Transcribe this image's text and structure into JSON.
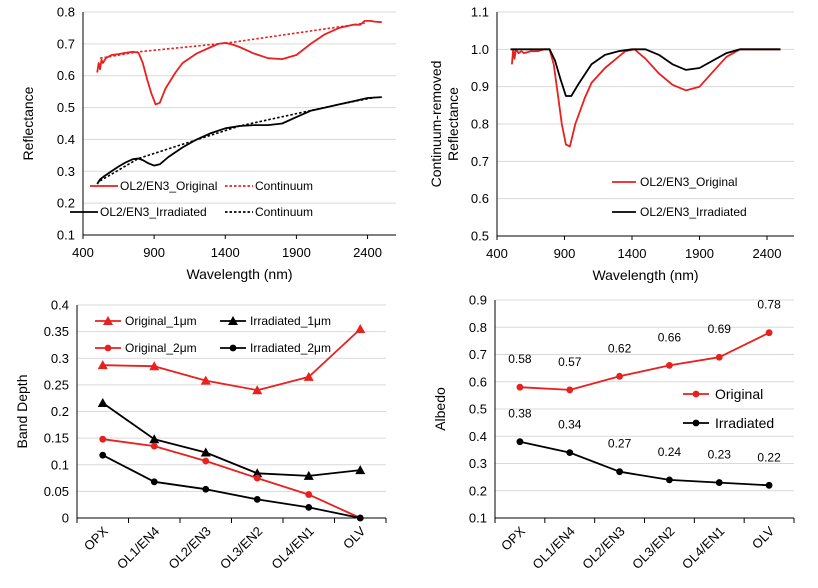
{
  "colors": {
    "original": "#e8201e",
    "irradiated": "#000000",
    "grid": "#d9d9d9"
  },
  "chart_data": [
    {
      "id": "reflectance",
      "type": "line",
      "xlabel": "Wavelength (nm)",
      "ylabel": "Reflectance",
      "xlim": [
        400,
        2600
      ],
      "ylim": [
        0.1,
        0.8
      ],
      "xticks": [
        "400",
        "900",
        "1400",
        "1900",
        "2400"
      ],
      "yticks": [
        "0.1",
        "0.2",
        "0.3",
        "0.4",
        "0.5",
        "0.6",
        "0.7",
        "0.8"
      ],
      "legend": [
        "OL2/EN3_Original",
        "Continuum",
        "OL2/EN3_Irradiated",
        "Continuum"
      ],
      "series": [
        {
          "name": "OL2/EN3_Original",
          "color": "original",
          "dash": false,
          "points": [
            [
              500,
              0.61
            ],
            [
              510,
              0.64
            ],
            [
              520,
              0.62
            ],
            [
              530,
              0.65
            ],
            [
              540,
              0.64
            ],
            [
              560,
              0.655
            ],
            [
              580,
              0.66
            ],
            [
              600,
              0.665
            ],
            [
              650,
              0.668
            ],
            [
              700,
              0.672
            ],
            [
              750,
              0.675
            ],
            [
              790,
              0.672
            ],
            [
              820,
              0.64
            ],
            [
              850,
              0.59
            ],
            [
              880,
              0.545
            ],
            [
              910,
              0.51
            ],
            [
              940,
              0.515
            ],
            [
              980,
              0.56
            ],
            [
              1050,
              0.61
            ],
            [
              1100,
              0.64
            ],
            [
              1200,
              0.67
            ],
            [
              1300,
              0.69
            ],
            [
              1350,
              0.7
            ],
            [
              1400,
              0.703
            ],
            [
              1450,
              0.698
            ],
            [
              1500,
              0.69
            ],
            [
              1600,
              0.67
            ],
            [
              1700,
              0.655
            ],
            [
              1800,
              0.652
            ],
            [
              1900,
              0.665
            ],
            [
              2000,
              0.7
            ],
            [
              2100,
              0.73
            ],
            [
              2200,
              0.75
            ],
            [
              2300,
              0.76
            ],
            [
              2350,
              0.76
            ],
            [
              2380,
              0.772
            ],
            [
              2420,
              0.772
            ],
            [
              2450,
              0.77
            ],
            [
              2500,
              0.768
            ]
          ]
        },
        {
          "name": "Continuum",
          "color": "original",
          "dash": true,
          "points": [
            [
              520,
              0.655
            ],
            [
              790,
              0.675
            ],
            [
              1420,
              0.703
            ],
            [
              2380,
              0.765
            ]
          ]
        },
        {
          "name": "OL2/EN3_Irradiated",
          "color": "irradiated",
          "dash": false,
          "points": [
            [
              500,
              0.26
            ],
            [
              520,
              0.275
            ],
            [
              550,
              0.285
            ],
            [
              600,
              0.3
            ],
            [
              650,
              0.315
            ],
            [
              700,
              0.328
            ],
            [
              750,
              0.338
            ],
            [
              790,
              0.34
            ],
            [
              820,
              0.335
            ],
            [
              860,
              0.325
            ],
            [
              900,
              0.318
            ],
            [
              940,
              0.322
            ],
            [
              1000,
              0.345
            ],
            [
              1100,
              0.375
            ],
            [
              1200,
              0.4
            ],
            [
              1300,
              0.42
            ],
            [
              1400,
              0.435
            ],
            [
              1500,
              0.442
            ],
            [
              1600,
              0.445
            ],
            [
              1700,
              0.445
            ],
            [
              1800,
              0.45
            ],
            [
              1900,
              0.47
            ],
            [
              2000,
              0.49
            ],
            [
              2100,
              0.5
            ],
            [
              2200,
              0.51
            ],
            [
              2300,
              0.52
            ],
            [
              2350,
              0.525
            ],
            [
              2400,
              0.53
            ],
            [
              2500,
              0.533
            ]
          ]
        },
        {
          "name": "Continuum",
          "color": "irradiated",
          "dash": true,
          "points": [
            [
              520,
              0.27
            ],
            [
              790,
              0.34
            ],
            [
              1500,
              0.442
            ],
            [
              2200,
              0.51
            ],
            [
              2450,
              0.532
            ]
          ]
        }
      ]
    },
    {
      "id": "continuum-removed",
      "type": "line",
      "xlabel": "Wavelength (nm)",
      "ylabel": [
        "Continuum-removed",
        "Reflectance"
      ],
      "xlim": [
        400,
        2600
      ],
      "ylim": [
        0.5,
        1.1
      ],
      "xticks": [
        "400",
        "900",
        "1400",
        "1900",
        "2400"
      ],
      "yticks": [
        "0.5",
        "0.6",
        "0.7",
        "0.8",
        "0.9",
        "1.0",
        "1.1"
      ],
      "legend": [
        "OL2/EN3_Original",
        "OL2/EN3_Irradiated"
      ],
      "series": [
        {
          "name": "OL2/EN3_Original",
          "color": "original",
          "dash": false,
          "points": [
            [
              510,
              0.96
            ],
            [
              520,
              1.0
            ],
            [
              530,
              0.975
            ],
            [
              540,
              1.0
            ],
            [
              560,
              0.99
            ],
            [
              580,
              0.995
            ],
            [
              600,
              0.99
            ],
            [
              650,
              0.995
            ],
            [
              700,
              0.995
            ],
            [
              750,
              1.0
            ],
            [
              790,
              1.0
            ],
            [
              820,
              0.96
            ],
            [
              850,
              0.88
            ],
            [
              880,
              0.8
            ],
            [
              910,
              0.745
            ],
            [
              940,
              0.74
            ],
            [
              980,
              0.8
            ],
            [
              1050,
              0.87
            ],
            [
              1100,
              0.91
            ],
            [
              1200,
              0.95
            ],
            [
              1300,
              0.98
            ],
            [
              1350,
              0.995
            ],
            [
              1420,
              1.0
            ],
            [
              1450,
              0.99
            ],
            [
              1500,
              0.975
            ],
            [
              1600,
              0.935
            ],
            [
              1700,
              0.905
            ],
            [
              1800,
              0.89
            ],
            [
              1900,
              0.9
            ],
            [
              2000,
              0.94
            ],
            [
              2100,
              0.98
            ],
            [
              2200,
              1.0
            ],
            [
              2400,
              1.0
            ],
            [
              2500,
              1.0
            ]
          ]
        },
        {
          "name": "OL2/EN3_Irradiated",
          "color": "irradiated",
          "dash": false,
          "points": [
            [
              500,
              1.0
            ],
            [
              700,
              1.0
            ],
            [
              790,
              1.0
            ],
            [
              830,
              0.97
            ],
            [
              870,
              0.92
            ],
            [
              910,
              0.875
            ],
            [
              950,
              0.875
            ],
            [
              1000,
              0.905
            ],
            [
              1100,
              0.96
            ],
            [
              1200,
              0.985
            ],
            [
              1300,
              0.995
            ],
            [
              1400,
              1.0
            ],
            [
              1500,
              1.0
            ],
            [
              1600,
              0.985
            ],
            [
              1700,
              0.96
            ],
            [
              1800,
              0.945
            ],
            [
              1900,
              0.95
            ],
            [
              2000,
              0.97
            ],
            [
              2100,
              0.99
            ],
            [
              2200,
              1.0
            ],
            [
              2500,
              1.0
            ]
          ]
        }
      ]
    },
    {
      "id": "band-depth",
      "type": "line",
      "xlabel": "",
      "ylabel": "Band Depth",
      "ylim": [
        0,
        0.4
      ],
      "categories": [
        "OPX",
        "OL1/EN4",
        "OL2/EN3",
        "OL3/EN2",
        "OL4/EN1",
        "OLV"
      ],
      "yticks": [
        "0",
        "0.05",
        "0.1",
        "0.15",
        "0.2",
        "0.25",
        "0.3",
        "0.35",
        "0.4"
      ],
      "series": [
        {
          "name": "Original_1μm",
          "color": "original",
          "marker": "triangle",
          "values": [
            0.287,
            0.285,
            0.258,
            0.24,
            0.265,
            0.355
          ]
        },
        {
          "name": "Irradiated_1μm",
          "color": "irradiated",
          "marker": "triangle",
          "values": [
            0.216,
            0.148,
            0.123,
            0.084,
            0.079,
            0.09
          ]
        },
        {
          "name": "Original_2μm",
          "color": "original",
          "marker": "circle",
          "values": [
            0.148,
            0.135,
            0.107,
            0.075,
            0.044,
            0.0
          ]
        },
        {
          "name": "Irradiated_2μm",
          "color": "irradiated",
          "marker": "circle",
          "values": [
            0.118,
            0.068,
            0.054,
            0.035,
            0.02,
            0.0
          ]
        }
      ]
    },
    {
      "id": "albedo",
      "type": "line",
      "xlabel": "",
      "ylabel": "Albedo",
      "ylim": [
        0.1,
        0.9
      ],
      "categories": [
        "OPX",
        "OL1/EN4",
        "OL2/EN3",
        "OL3/EN2",
        "OL4/EN1",
        "OLV"
      ],
      "yticks": [
        "0.1",
        "0.2",
        "0.3",
        "0.4",
        "0.5",
        "0.6",
        "0.7",
        "0.8",
        "0.9"
      ],
      "series": [
        {
          "name": "Original",
          "color": "original",
          "marker": "circle",
          "values": [
            0.58,
            0.57,
            0.62,
            0.66,
            0.69,
            0.78
          ],
          "labels": [
            "0.58",
            "0.57",
            "0.62",
            "0.66",
            "0.69",
            "0.78"
          ]
        },
        {
          "name": "Irradiated",
          "color": "irradiated",
          "marker": "circle",
          "values": [
            0.38,
            0.34,
            0.27,
            0.24,
            0.23,
            0.22
          ],
          "labels": [
            "0.38",
            "0.34",
            "0.27",
            "0.24",
            "0.23",
            "0.22"
          ]
        }
      ]
    }
  ]
}
